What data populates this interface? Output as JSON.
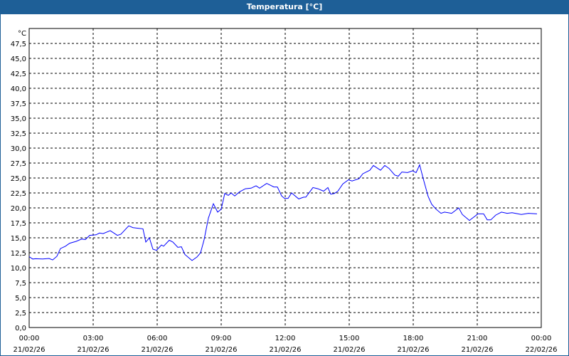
{
  "window": {
    "title": "Temperatura [°C]",
    "accent": "#1e5f97"
  },
  "chart_data": {
    "type": "line",
    "title": "Temperatura [°C]",
    "ylabel": "°C",
    "ylim": [
      0,
      50
    ],
    "yticks": [
      "0,0",
      "2,5",
      "5,0",
      "7,5",
      "10,0",
      "12,5",
      "15,0",
      "17,5",
      "20,0",
      "22,5",
      "25,0",
      "27,5",
      "30,0",
      "32,5",
      "35,0",
      "37,5",
      "40,0",
      "42,5",
      "45,0",
      "47,5"
    ],
    "xticks": [
      {
        "time": "00:00",
        "date": "21/02/26"
      },
      {
        "time": "03:00",
        "date": "21/02/26"
      },
      {
        "time": "06:00",
        "date": "21/02/26"
      },
      {
        "time": "09:00",
        "date": "21/02/26"
      },
      {
        "time": "12:00",
        "date": "21/02/26"
      },
      {
        "time": "15:00",
        "date": "21/02/26"
      },
      {
        "time": "18:00",
        "date": "21/02/26"
      },
      {
        "time": "21:00",
        "date": "21/02/26"
      },
      {
        "time": "00:00",
        "date": "22/02/26"
      }
    ],
    "xlim": [
      "21/02/26 00:00",
      "22/02/26 00:00"
    ],
    "grid": true,
    "line_color": "#0000ff",
    "series": [
      {
        "x": [
          "00:00",
          "00:10",
          "00:18",
          "00:38",
          "00:56",
          "01:06",
          "01:18",
          "01:28",
          "01:42",
          "01:54",
          "02:12",
          "02:28",
          "02:38",
          "02:50",
          "03:08",
          "03:18",
          "03:28",
          "03:48",
          "04:08",
          "04:18",
          "04:40",
          "04:52",
          "05:20",
          "05:28",
          "05:38",
          "05:48",
          "05:58",
          "06:12",
          "06:18",
          "06:34",
          "06:44",
          "06:58",
          "07:08",
          "07:18",
          "07:38",
          "07:52",
          "08:02",
          "08:12",
          "08:24",
          "08:38",
          "08:50",
          "09:00",
          "09:10",
          "09:20",
          "09:28",
          "09:38",
          "09:52",
          "10:08",
          "10:24",
          "10:38",
          "10:48",
          "11:08",
          "11:28",
          "11:38",
          "11:50",
          "11:58",
          "12:08",
          "12:18",
          "12:38",
          "12:52",
          "12:58",
          "13:18",
          "13:32",
          "13:48",
          "14:00",
          "14:08",
          "14:18",
          "14:28",
          "14:42",
          "14:58",
          "15:08",
          "15:28",
          "15:38",
          "15:58",
          "16:08",
          "16:28",
          "16:40",
          "16:52",
          "17:08",
          "17:18",
          "17:28",
          "17:44",
          "17:58",
          "18:08",
          "18:18",
          "18:28",
          "18:42",
          "18:52",
          "19:04",
          "19:18",
          "19:28",
          "19:48",
          "20:08",
          "20:18",
          "20:38",
          "21:02",
          "21:18",
          "21:28",
          "21:38",
          "21:52",
          "22:08",
          "22:24",
          "22:38",
          "23:04",
          "23:24",
          "23:48"
        ],
        "values": [
          11.85,
          11.45,
          11.5,
          11.45,
          11.55,
          11.3,
          11.9,
          13.2,
          13.6,
          14.1,
          14.4,
          14.8,
          14.7,
          15.4,
          15.5,
          15.8,
          15.7,
          16.2,
          15.4,
          15.6,
          17.0,
          16.7,
          16.5,
          14.3,
          15.0,
          13.1,
          12.9,
          13.8,
          13.6,
          14.6,
          14.3,
          13.4,
          13.5,
          12.2,
          11.2,
          11.8,
          12.5,
          14.7,
          18.3,
          20.7,
          19.3,
          19.8,
          22.4,
          22.1,
          22.5,
          22.0,
          22.7,
          23.2,
          23.3,
          23.7,
          23.3,
          24.1,
          23.5,
          23.5,
          22.0,
          21.6,
          21.6,
          22.5,
          21.5,
          21.8,
          21.8,
          23.4,
          23.2,
          22.8,
          23.4,
          22.3,
          22.4,
          22.8,
          24.0,
          24.7,
          24.5,
          24.9,
          25.7,
          26.3,
          27.1,
          26.3,
          27.1,
          26.6,
          25.5,
          25.3,
          26.0,
          25.9,
          26.2,
          25.9,
          27.2,
          24.9,
          21.9,
          20.6,
          19.8,
          19.1,
          19.3,
          19.1,
          20.0,
          18.9,
          17.9,
          19.0,
          19.0,
          18.0,
          18.0,
          18.8,
          19.3,
          19.1,
          19.2,
          18.9,
          19.1,
          19.0
        ]
      }
    ]
  }
}
